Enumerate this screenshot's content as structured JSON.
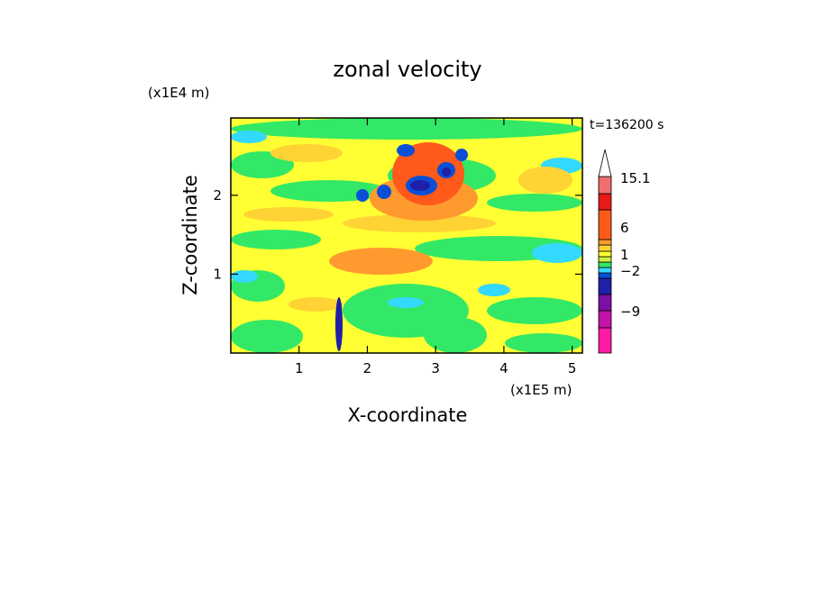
{
  "chart_data": {
    "type": "heatmap",
    "title": "zonal velocity",
    "xlabel": "X-coordinate",
    "ylabel": "Z-coordinate",
    "x_unit": "(x1E5 m)",
    "y_unit": "(x1E4 m)",
    "time_label": "t=136200 s",
    "xlim": [
      0,
      5.15
    ],
    "ylim": [
      0,
      2.98
    ],
    "x_ticks": [
      "1",
      "2",
      "3",
      "4",
      "5"
    ],
    "y_ticks": [
      "1",
      "2"
    ],
    "colorbar": {
      "bins": [
        {
          "color": "#ff1aa6"
        },
        {
          "color": "#c412a6"
        },
        {
          "color": "#7d0fa6"
        },
        {
          "color": "#1f1fa8"
        },
        {
          "color": "#0a4fd6"
        },
        {
          "color": "#33d9ff"
        },
        {
          "color": "#33e866"
        },
        {
          "color": "#ccf23d"
        },
        {
          "color": "#ffff33"
        },
        {
          "color": "#ffd333"
        },
        {
          "color": "#ff9a2e"
        },
        {
          "color": "#ff5a1a"
        },
        {
          "color": "#e81a1a"
        },
        {
          "color": "#f06e6e"
        },
        {
          "color": "#f8b0b0"
        },
        {
          "color": "#ffffff"
        }
      ],
      "labels": [
        "15.1",
        "6",
        "1",
        "−2",
        "−9"
      ]
    },
    "field_colors": {
      "background": "#ffff33",
      "weak_positive": "#ffd333",
      "positive": "#ff9a2e",
      "strong_positive": "#ff5a1a",
      "weak_negative": "#33e866",
      "negative": "#33d9ff",
      "strong_negative": "#0a4fd6",
      "extreme_negative": "#1f1fa8"
    }
  }
}
